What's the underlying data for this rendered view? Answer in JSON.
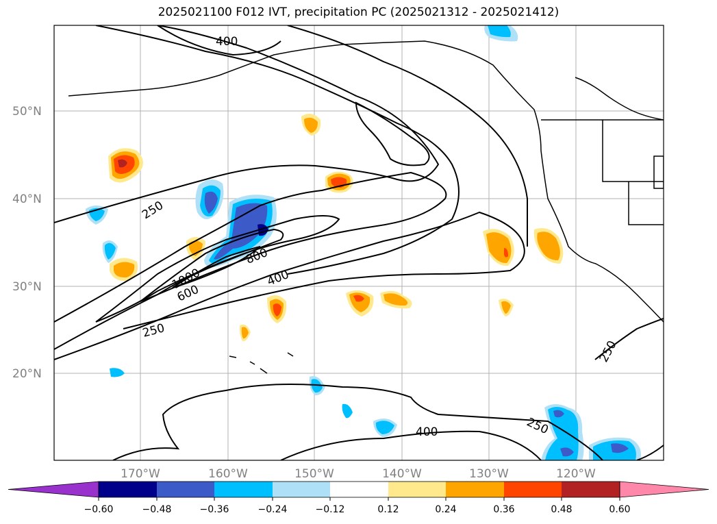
{
  "title": "2025021100 F012 IVT, precipitation PC (2025021312 - 2025021412)",
  "map": {
    "latitude_labels": [
      "50°N",
      "40°N",
      "30°N",
      "20°N"
    ],
    "longitude_labels": [
      "170°W",
      "160°W",
      "150°W",
      "140°W",
      "130°W",
      "120°W"
    ],
    "contour_labels": [
      "400",
      "250",
      "1000",
      "600",
      "800",
      "400",
      "250",
      "250",
      "400",
      "250"
    ],
    "colors": {
      "gridline": "#b0b0b0",
      "contour": "#000000",
      "coast": "#000000"
    }
  },
  "colorbar": {
    "colors": [
      "#9932cc",
      "#00008b",
      "#3c5ac8",
      "#00bfff",
      "#aee1f8",
      "#ffffff",
      "#ffe98c",
      "#ffa500",
      "#ff4500",
      "#b22222",
      "#ff88aa"
    ],
    "tick_labels": [
      "−0.60",
      "−0.48",
      "−0.36",
      "−0.24",
      "−0.12",
      "0.12",
      "0.24",
      "0.36",
      "0.48",
      "0.60"
    ]
  }
}
